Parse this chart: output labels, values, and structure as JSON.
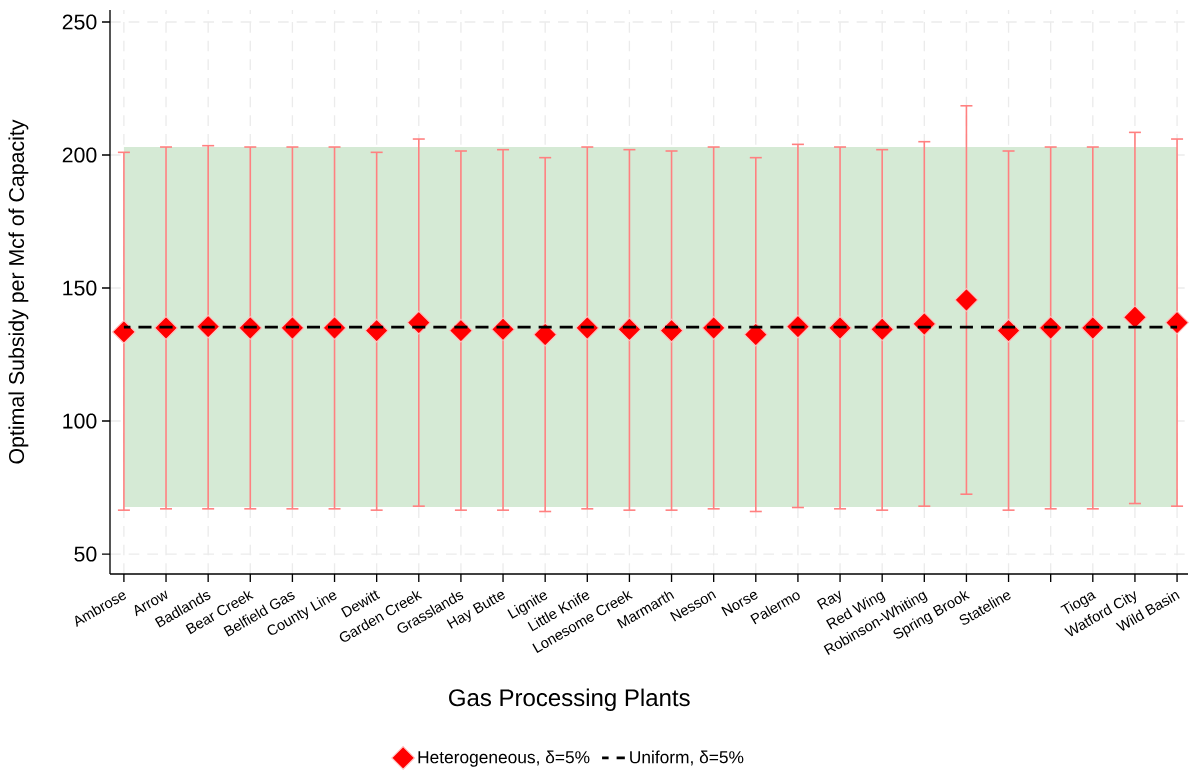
{
  "chart_data": {
    "type": "scatter",
    "xlabel": "Gas Processing Plants",
    "ylabel": "Optimal Subsidy per Mcf of Capacity",
    "categories": [
      "Ambrose",
      "Arrow",
      "Badlands",
      "Bear Creek",
      "Belfield Gas",
      "County Line",
      "Dewitt",
      "Garden Creek",
      "Grasslands",
      "Hay Butte",
      "Lignite",
      "Little Knife",
      "Lonesome Creek",
      "Marmarth",
      "Nesson",
      "Norse",
      "Palermo",
      "Ray",
      "Red Wing",
      "Robinson-Whiting",
      "Spring Brook",
      "Stateline",
      null,
      "Tioga",
      "Watford City",
      "Wild Basin"
    ],
    "series": [
      {
        "name": "Heterogeneous, δ=5%",
        "color": "#ff0000",
        "marker": "diamond",
        "values": [
          133.5,
          135,
          135.5,
          135,
          135,
          135,
          134,
          137,
          134,
          134.5,
          132.5,
          135,
          134.5,
          134,
          135,
          132.5,
          135.5,
          135,
          134.5,
          136.5,
          145.5,
          134,
          135,
          135,
          139,
          137
        ],
        "errors": [
          [
            66.5,
            201
          ],
          [
            67,
            203
          ],
          [
            67,
            203.5
          ],
          [
            67,
            203
          ],
          [
            67,
            203
          ],
          [
            67,
            203
          ],
          [
            66.5,
            201
          ],
          [
            68,
            206
          ],
          [
            66.5,
            201.5
          ],
          [
            66.5,
            202
          ],
          [
            66,
            199
          ],
          [
            67,
            203
          ],
          [
            66.5,
            202
          ],
          [
            66.5,
            201.5
          ],
          [
            67,
            203
          ],
          [
            66,
            199
          ],
          [
            67.5,
            204
          ],
          [
            67,
            203
          ],
          [
            66.5,
            202
          ],
          [
            68,
            205
          ],
          [
            72.5,
            218.5
          ],
          [
            66.5,
            201.5
          ],
          [
            67,
            203
          ],
          [
            67,
            203
          ],
          [
            69,
            208.5
          ],
          [
            68,
            206
          ]
        ]
      },
      {
        "name": "Uniform, δ=5%",
        "type": "line",
        "color": "#000000",
        "marker": "none",
        "line_style": "dashed",
        "values": [
          135.3,
          135.3,
          135.3,
          135.3,
          135.3,
          135.3,
          135.3,
          135.3,
          135.3,
          135.3,
          135.3,
          135.3,
          135.3,
          135.3,
          135.3,
          135.3,
          135.3,
          135.3,
          135.3,
          135.3,
          135.3,
          135.3,
          135.3,
          135.3,
          135.3,
          135.3
        ]
      }
    ],
    "bands": [
      {
        "axis": "y",
        "from": 67.7,
        "to": 203,
        "color": "#d5ead5"
      }
    ],
    "ylim": [
      42.5,
      254.5
    ],
    "yticks": [
      50,
      100,
      150,
      200,
      250
    ],
    "grid": true,
    "legend": "bottom"
  }
}
